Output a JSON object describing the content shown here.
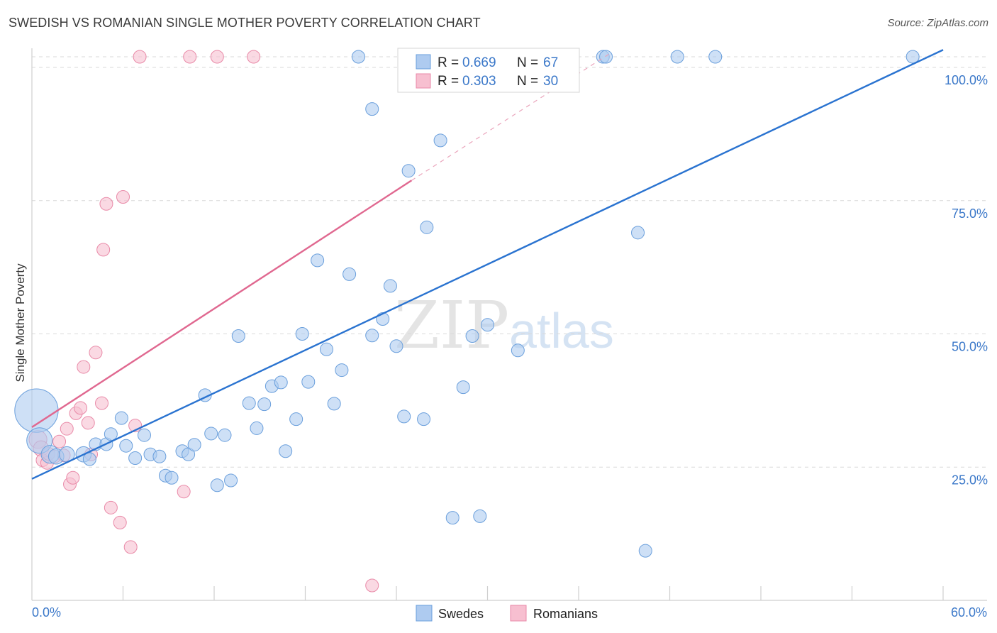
{
  "title": "SWEDISH VS ROMANIAN SINGLE MOTHER POVERTY CORRELATION CHART",
  "source": "Source: ZipAtlas.com",
  "watermark": {
    "zip": "ZIP",
    "atlas": "atlas"
  },
  "colors": {
    "swedes_fill": "#aecbf0",
    "swedes_stroke": "#6a9fdc",
    "swedes_line": "#2a73d0",
    "romanians_fill": "#f7bfd0",
    "romanians_stroke": "#e98aa8",
    "romanians_line": "#e06890"
  },
  "legend": {
    "r_label": "R =",
    "n_label": "N =",
    "rows": [
      {
        "r": "0.669",
        "n": "67"
      },
      {
        "r": "0.303",
        "n": "30"
      }
    ]
  },
  "bottom_legend": [
    "Swedes",
    "Romanians"
  ],
  "chart_data": {
    "type": "scatter",
    "title": "SWEDISH VS ROMANIAN SINGLE MOTHER POVERTY CORRELATION CHART",
    "xlabel": "",
    "ylabel": "Single Mother Poverty",
    "xlim": [
      0,
      60
    ],
    "ylim": [
      0,
      102
    ],
    "x_tick_labels": [
      "0.0%",
      "60.0%"
    ],
    "y_ticks": [
      25,
      50,
      75,
      100
    ],
    "y_tick_labels": [
      "25.0%",
      "50.0%",
      "75.0%",
      "100.0%"
    ],
    "grid": true,
    "legend_placement": "top-center",
    "series": [
      {
        "name": "Swedes",
        "r": 0.669,
        "n": 67,
        "trend": {
          "x": [
            0,
            60
          ],
          "y": [
            22.8,
            103.3
          ]
        },
        "points": [
          [
            0.3,
            35.6,
            34
          ],
          [
            0.5,
            30.0,
            20
          ],
          [
            1.2,
            27.4,
            14
          ],
          [
            1.6,
            27.0,
            12
          ],
          [
            2.3,
            27.4,
            12
          ],
          [
            3.4,
            27.4,
            12
          ],
          [
            3.8,
            26.5,
            10
          ],
          [
            4.2,
            29.3,
            10
          ],
          [
            4.9,
            29.3,
            10
          ],
          [
            5.2,
            31.2,
            10
          ],
          [
            5.9,
            34.2,
            10
          ],
          [
            6.2,
            29.0,
            10
          ],
          [
            6.8,
            26.7,
            10
          ],
          [
            7.4,
            31.0,
            10
          ],
          [
            7.8,
            27.4,
            10
          ],
          [
            8.4,
            27.0,
            10
          ],
          [
            8.8,
            23.4,
            10
          ],
          [
            9.2,
            23.0,
            10
          ],
          [
            9.9,
            28.0,
            10
          ],
          [
            10.3,
            27.4,
            10
          ],
          [
            10.7,
            29.2,
            10
          ],
          [
            11.4,
            38.5,
            10
          ],
          [
            11.8,
            31.3,
            10
          ],
          [
            12.2,
            21.6,
            10
          ],
          [
            12.7,
            31.0,
            10
          ],
          [
            13.1,
            22.5,
            10
          ],
          [
            13.6,
            49.6,
            10
          ],
          [
            14.3,
            37.0,
            10
          ],
          [
            14.8,
            32.3,
            10
          ],
          [
            15.3,
            36.8,
            10
          ],
          [
            15.8,
            40.2,
            10
          ],
          [
            16.4,
            40.9,
            10
          ],
          [
            16.7,
            28.0,
            10
          ],
          [
            17.4,
            34.0,
            10
          ],
          [
            17.8,
            50.0,
            10
          ],
          [
            18.2,
            41.0,
            10
          ],
          [
            18.8,
            63.8,
            10
          ],
          [
            19.4,
            47.1,
            10
          ],
          [
            19.9,
            36.9,
            10
          ],
          [
            20.4,
            43.2,
            10
          ],
          [
            20.9,
            61.2,
            10
          ],
          [
            21.5,
            102.0,
            10
          ],
          [
            22.4,
            49.7,
            10
          ],
          [
            22.4,
            92.2,
            10
          ],
          [
            23.1,
            52.8,
            10
          ],
          [
            23.6,
            59.0,
            10
          ],
          [
            24.0,
            47.7,
            10
          ],
          [
            24.5,
            34.5,
            10
          ],
          [
            24.8,
            80.6,
            10
          ],
          [
            25.8,
            34.0,
            10
          ],
          [
            26.0,
            70.0,
            10
          ],
          [
            26.9,
            86.3,
            10
          ],
          [
            27.7,
            15.5,
            10
          ],
          [
            28.4,
            40.0,
            10
          ],
          [
            29.0,
            49.6,
            10
          ],
          [
            29.5,
            15.8,
            10
          ],
          [
            30.0,
            51.7,
            10
          ],
          [
            31.1,
            102.0,
            10
          ],
          [
            32.0,
            46.9,
            10
          ],
          [
            37.6,
            102.0,
            10
          ],
          [
            37.8,
            102.0,
            10
          ],
          [
            39.9,
            69.0,
            10
          ],
          [
            40.4,
            9.3,
            10
          ],
          [
            42.5,
            102.0,
            10
          ],
          [
            45.0,
            102.0,
            10
          ],
          [
            58.0,
            102.0,
            10
          ]
        ]
      },
      {
        "name": "Romanians",
        "r": 0.303,
        "n": 30,
        "trend": {
          "x": [
            0,
            25
          ],
          "y": [
            32.5,
            78.8
          ]
        },
        "trend_dashed": {
          "x": [
            25,
            38
          ],
          "y": [
            78.8,
            102.5
          ]
        },
        "points": [
          [
            0.4,
            30.2,
            14
          ],
          [
            0.6,
            28.5,
            12
          ],
          [
            0.7,
            26.3,
            10
          ],
          [
            1.0,
            25.8,
            10
          ],
          [
            1.1,
            27.5,
            10
          ],
          [
            1.5,
            27.0,
            10
          ],
          [
            1.8,
            29.8,
            10
          ],
          [
            2.1,
            27.2,
            10
          ],
          [
            2.3,
            32.2,
            10
          ],
          [
            2.5,
            21.8,
            10
          ],
          [
            2.7,
            23.0,
            10
          ],
          [
            2.9,
            35.1,
            10
          ],
          [
            3.2,
            36.1,
            10
          ],
          [
            3.4,
            43.8,
            10
          ],
          [
            3.7,
            33.3,
            10
          ],
          [
            3.9,
            27.4,
            10
          ],
          [
            4.2,
            46.5,
            10
          ],
          [
            4.6,
            37.0,
            10
          ],
          [
            4.7,
            65.8,
            10
          ],
          [
            4.9,
            74.4,
            10
          ],
          [
            5.2,
            17.4,
            10
          ],
          [
            5.8,
            14.6,
            10
          ],
          [
            6.0,
            75.7,
            10
          ],
          [
            6.5,
            10.0,
            10
          ],
          [
            6.8,
            32.8,
            10
          ],
          [
            7.1,
            102.0,
            10
          ],
          [
            10.0,
            20.4,
            10
          ],
          [
            10.4,
            102.0,
            10
          ],
          [
            12.2,
            102.0,
            10
          ],
          [
            14.6,
            102.0,
            10
          ],
          [
            22.4,
            2.8,
            10
          ]
        ]
      }
    ]
  }
}
